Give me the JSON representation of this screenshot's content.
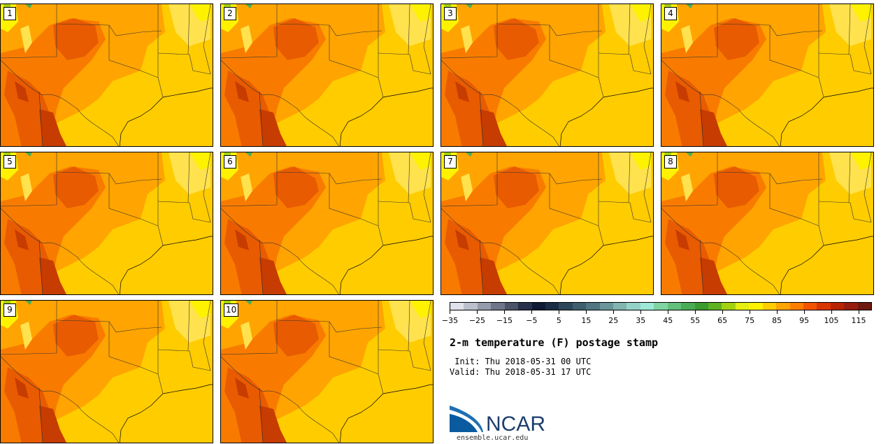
{
  "title": "2-m temperature (F) postage stamp",
  "init_label": " Init: Thu 2018-05-31 00 UTC",
  "valid_label": "Valid: Thu 2018-05-31 17 UTC",
  "logo_text": "NCAR",
  "site": "ensemble.ucar.edu",
  "members": [
    "1",
    "2",
    "3",
    "4",
    "5",
    "6",
    "7",
    "8",
    "9",
    "10"
  ],
  "colorbar": {
    "colors": [
      "#dfe2ea",
      "#bcbfcc",
      "#969bab",
      "#6f768b",
      "#4c5468",
      "#27324a",
      "#0f1b33",
      "#1b2d45",
      "#2d465a",
      "#3f5f6e",
      "#507682",
      "#6a959b",
      "#82b4b0",
      "#95d2c6",
      "#9de8d7",
      "#7fd4a2",
      "#63bf7a",
      "#4aab55",
      "#3c9b30",
      "#5fb220",
      "#a4d010",
      "#e3ef10",
      "#fff200",
      "#ffcc00",
      "#ffa400",
      "#ff7e00",
      "#f25500",
      "#d93600",
      "#b82400",
      "#971d10",
      "#6e1a10"
    ],
    "tick_labels": [
      "−35",
      "−25",
      "−15",
      "−5",
      "5",
      "15",
      "25",
      "35",
      "45",
      "55",
      "65",
      "75",
      "85",
      "95",
      "105",
      "115"
    ],
    "range": [
      -35,
      120
    ]
  },
  "map_colors": {
    "base": "#ffcc00",
    "warm": "#ffa400",
    "hot": "#f87b00",
    "hotter": "#e85b00",
    "hottest": "#c73c00",
    "cool": "#ffe24d",
    "cooler": "#fff200",
    "green": "#a4d010",
    "teal": "#4aab55"
  }
}
